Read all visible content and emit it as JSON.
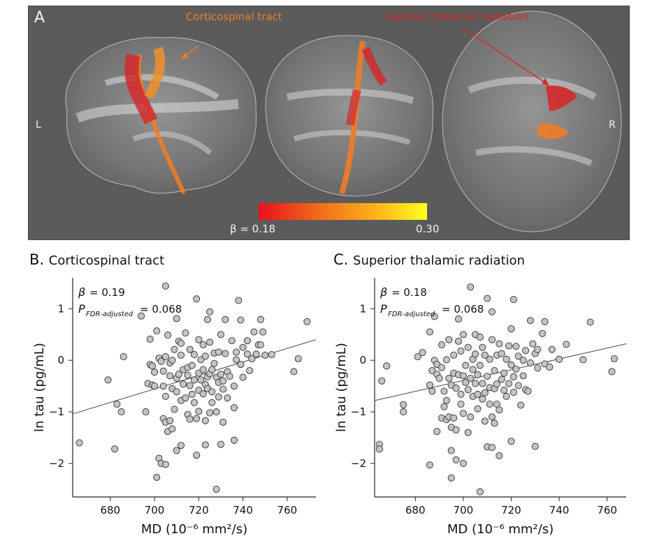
{
  "panel_a": {
    "letter": "A",
    "left_label": "L",
    "right_label": "R",
    "tract1": "Corticospinal tract",
    "tract2": "Superior thalamic radiation",
    "colorbar": {
      "min_label": "β = 0.18",
      "max_label": "0.30",
      "colors": [
        "#e8101c",
        "#f26a1c",
        "#fbb318",
        "#ffff1e"
      ]
    },
    "colors": {
      "background": "#5b5b5b",
      "corticospinal": "#f07c28",
      "thalamic": "#d42a2a"
    }
  },
  "chart_data": [
    {
      "type": "scatter",
      "panel_letter": "B.",
      "title": "Corticospinal tract",
      "xlabel": "MD (10⁻⁶ mm²/s)",
      "ylabel": "ln tau (pg/mL)",
      "xlim": [
        663,
        773
      ],
      "ylim": [
        -2.65,
        1.6
      ],
      "xticks": [
        680,
        700,
        720,
        740,
        760
      ],
      "yticks": [
        1,
        0,
        -1,
        -2
      ],
      "stat_beta": "= 0.19",
      "stat_p": "= 0.068",
      "beta_symbol": "β",
      "p_symbol": "P",
      "p_subscript": "FDR-adjusted",
      "regression_line": {
        "x": [
          663,
          773
        ],
        "y": [
          -1.04,
          0.4
        ]
      },
      "points": [
        [
          666,
          -1.6
        ],
        [
          679,
          -0.38
        ],
        [
          682,
          -1.72
        ],
        [
          683,
          -0.85
        ],
        [
          685,
          -1.0
        ],
        [
          686,
          0.07
        ],
        [
          694,
          0.86
        ],
        [
          696,
          -1.0
        ],
        [
          697,
          -0.45
        ],
        [
          698,
          -0.08
        ],
        [
          698,
          0.41
        ],
        [
          699,
          -0.11
        ],
        [
          699,
          -0.48
        ],
        [
          700,
          -0.23
        ],
        [
          700,
          -0.5
        ],
        [
          701,
          0.57
        ],
        [
          701,
          -2.27
        ],
        [
          702,
          -1.9
        ],
        [
          702,
          0.04
        ],
        [
          703,
          -0.02
        ],
        [
          703,
          -2.0
        ],
        [
          704,
          -1.13
        ],
        [
          704,
          -0.21
        ],
        [
          704,
          -0.5
        ],
        [
          705,
          -0.7
        ],
        [
          705,
          -1.2
        ],
        [
          705,
          -2.02
        ],
        [
          705,
          1.44
        ],
        [
          705,
          0.07
        ],
        [
          706,
          -1.38
        ],
        [
          706,
          0.49
        ],
        [
          707,
          -0.3
        ],
        [
          707,
          -0.05
        ],
        [
          707,
          -1.17
        ],
        [
          708,
          -1.33
        ],
        [
          708,
          -0.55
        ],
        [
          708,
          0.0
        ],
        [
          709,
          -0.95
        ],
        [
          709,
          0.21
        ],
        [
          710,
          -1.75
        ],
        [
          710,
          -0.35
        ],
        [
          710,
          0.81
        ],
        [
          710,
          -0.61
        ],
        [
          711,
          -0.27
        ],
        [
          711,
          0.37
        ],
        [
          712,
          -1.65
        ],
        [
          712,
          -0.78
        ],
        [
          712,
          0.1
        ],
        [
          712,
          0.33
        ],
        [
          713,
          -0.18
        ],
        [
          713,
          -0.46
        ],
        [
          714,
          -0.73
        ],
        [
          714,
          0.53
        ],
        [
          715,
          -0.29
        ],
        [
          715,
          -1.05
        ],
        [
          715,
          -0.14
        ],
        [
          716,
          -1.14
        ],
        [
          716,
          0.21
        ],
        [
          716,
          -0.49
        ],
        [
          717,
          -0.1
        ],
        [
          717,
          -0.66
        ],
        [
          718,
          -0.38
        ],
        [
          718,
          -0.82
        ],
        [
          718,
          0.11
        ],
        [
          719,
          -1.84
        ],
        [
          719,
          1.19
        ],
        [
          719,
          -1.13
        ],
        [
          720,
          -0.25
        ],
        [
          720,
          -0.58
        ],
        [
          720,
          0.4
        ],
        [
          720,
          -0.99
        ],
        [
          721,
          -0.38
        ],
        [
          721,
          0.01
        ],
        [
          722,
          -0.65
        ],
        [
          722,
          0.3
        ],
        [
          722,
          -0.18
        ],
        [
          723,
          -1.64
        ],
        [
          723,
          -1.17
        ],
        [
          723,
          -0.47
        ],
        [
          723,
          0.08
        ],
        [
          724,
          0.79
        ],
        [
          724,
          -0.32
        ],
        [
          724,
          -0.55
        ],
        [
          725,
          -0.26
        ],
        [
          725,
          0.94
        ],
        [
          725,
          -1.02
        ],
        [
          725,
          0.35
        ],
        [
          726,
          -0.18
        ],
        [
          726,
          -0.61
        ],
        [
          726,
          -0.82
        ],
        [
          727,
          -0.06
        ],
        [
          727,
          0.14
        ],
        [
          728,
          -1.0
        ],
        [
          728,
          -0.33
        ],
        [
          728,
          -2.5
        ],
        [
          729,
          -0.43
        ],
        [
          729,
          0.16
        ],
        [
          729,
          -0.71
        ],
        [
          730,
          -0.27
        ],
        [
          730,
          -1.63
        ],
        [
          730,
          0.5
        ],
        [
          731,
          -0.4
        ],
        [
          731,
          -0.56
        ],
        [
          731,
          -1.2
        ],
        [
          732,
          0.13
        ],
        [
          732,
          0.79
        ],
        [
          733,
          -0.22
        ],
        [
          733,
          -0.73
        ],
        [
          734,
          -0.31
        ],
        [
          735,
          0.38
        ],
        [
          736,
          -0.5
        ],
        [
          736,
          -0.92
        ],
        [
          736,
          -1.55
        ],
        [
          737,
          0.01
        ],
        [
          737,
          0.16
        ],
        [
          738,
          1.16
        ],
        [
          739,
          -0.08
        ],
        [
          739,
          0.78
        ],
        [
          740,
          0.25
        ],
        [
          740,
          -0.33
        ],
        [
          742,
          0.12
        ],
        [
          742,
          0.38
        ],
        [
          743,
          -0.2
        ],
        [
          744,
          0.03
        ],
        [
          745,
          0.55
        ],
        [
          746,
          0.12
        ],
        [
          747,
          0.3
        ],
        [
          748,
          0.79
        ],
        [
          748,
          0.3
        ],
        [
          749,
          0.55
        ],
        [
          750,
          0.1
        ],
        [
          753,
          0.11
        ],
        [
          763,
          -0.22
        ],
        [
          765,
          0.03
        ],
        [
          769,
          0.75
        ]
      ]
    },
    {
      "type": "scatter",
      "panel_letter": "C.",
      "title": "Superior thalamic radiation",
      "xlabel": "MD (10⁻⁶ mm²/s)",
      "ylabel": "ln tau (pg/mL)",
      "xlim": [
        663,
        768
      ],
      "ylim": [
        -2.65,
        1.6
      ],
      "xticks": [
        680,
        700,
        720,
        740,
        760
      ],
      "yticks": [
        1,
        0,
        -1,
        -2
      ],
      "stat_beta": "= 0.18",
      "stat_p": "= 0.068",
      "beta_symbol": "β",
      "p_symbol": "P",
      "p_subscript": "FDR-adjusted",
      "regression_line": {
        "x": [
          663,
          768
        ],
        "y": [
          -0.78,
          0.32
        ]
      },
      "points": [
        [
          665,
          -1.63
        ],
        [
          665,
          -1.72
        ],
        [
          666,
          -0.4
        ],
        [
          668,
          -0.11
        ],
        [
          675,
          -0.86
        ],
        [
          675,
          -1.0
        ],
        [
          681,
          0.07
        ],
        [
          683,
          0.15
        ],
        [
          686,
          -2.03
        ],
        [
          686,
          -0.48
        ],
        [
          686,
          0.55
        ],
        [
          687,
          -0.2
        ],
        [
          687,
          -0.6
        ],
        [
          688,
          0.0
        ],
        [
          688,
          0.85
        ],
        [
          689,
          -1.38
        ],
        [
          689,
          -0.27
        ],
        [
          689,
          -0.08
        ],
        [
          690,
          -0.35
        ],
        [
          691,
          0.3
        ],
        [
          691,
          -1.12
        ],
        [
          691,
          -0.14
        ],
        [
          692,
          -0.6
        ],
        [
          692,
          -0.9
        ],
        [
          693,
          -1.15
        ],
        [
          693,
          -0.78
        ],
        [
          693,
          0.01
        ],
        [
          694,
          -1.1
        ],
        [
          694,
          -0.35
        ],
        [
          694,
          0.4
        ],
        [
          695,
          -2.28
        ],
        [
          695,
          -1.75
        ],
        [
          695,
          -0.48
        ],
        [
          695,
          -1.3
        ],
        [
          696,
          -1.12
        ],
        [
          696,
          0.1
        ],
        [
          696,
          -0.25
        ],
        [
          697,
          -1.93
        ],
        [
          697,
          -0.54
        ],
        [
          697,
          -1.35
        ],
        [
          698,
          0.37
        ],
        [
          698,
          0.8
        ],
        [
          698,
          -0.28
        ],
        [
          699,
          -0.66
        ],
        [
          699,
          -0.85
        ],
        [
          699,
          0.18
        ],
        [
          700,
          -0.3
        ],
        [
          700,
          -1.03
        ],
        [
          700,
          -2.0
        ],
        [
          700,
          0.5
        ],
        [
          701,
          -0.1
        ],
        [
          701,
          -0.43
        ],
        [
          702,
          -1.4
        ],
        [
          702,
          0.25
        ],
        [
          702,
          -0.57
        ],
        [
          703,
          1.42
        ],
        [
          703,
          -0.35
        ],
        [
          703,
          -1.1
        ],
        [
          704,
          0.02
        ],
        [
          704,
          -0.7
        ],
        [
          704,
          -0.18
        ],
        [
          705,
          0.5
        ],
        [
          705,
          -0.45
        ],
        [
          705,
          0.12
        ],
        [
          706,
          -0.94
        ],
        [
          706,
          -0.66
        ],
        [
          706,
          -0.28
        ],
        [
          707,
          -2.55
        ],
        [
          707,
          0.45
        ],
        [
          707,
          -0.1
        ],
        [
          708,
          -0.75
        ],
        [
          708,
          -0.45
        ],
        [
          708,
          0.25
        ],
        [
          709,
          -1.18
        ],
        [
          709,
          0.1
        ],
        [
          709,
          -0.63
        ],
        [
          710,
          1.2
        ],
        [
          710,
          -0.31
        ],
        [
          710,
          -1.68
        ],
        [
          711,
          -0.53
        ],
        [
          711,
          -0.85
        ],
        [
          711,
          0.02
        ],
        [
          712,
          -1.1
        ],
        [
          712,
          0.94
        ],
        [
          712,
          -1.69
        ],
        [
          712,
          0.4
        ],
        [
          713,
          -0.2
        ],
        [
          713,
          -1.22
        ],
        [
          713,
          -0.55
        ],
        [
          714,
          -0.46
        ],
        [
          714,
          0.1
        ],
        [
          714,
          -0.85
        ],
        [
          715,
          0.32
        ],
        [
          715,
          -0.96
        ],
        [
          715,
          -1.85
        ],
        [
          716,
          -0.37
        ],
        [
          716,
          0.13
        ],
        [
          717,
          -0.58
        ],
        [
          717,
          -0.25
        ],
        [
          718,
          0.02
        ],
        [
          718,
          -0.7
        ],
        [
          719,
          0.28
        ],
        [
          719,
          -0.45
        ],
        [
          720,
          0.61
        ],
        [
          720,
          -0.09
        ],
        [
          720,
          -1.57
        ],
        [
          721,
          1.18
        ],
        [
          721,
          -0.32
        ],
        [
          721,
          -0.62
        ],
        [
          722,
          0.27
        ],
        [
          722,
          -0.17
        ],
        [
          723,
          -0.49
        ],
        [
          723,
          0.08
        ],
        [
          724,
          -0.87
        ],
        [
          725,
          -0.3
        ],
        [
          725,
          0.0
        ],
        [
          726,
          -0.57
        ],
        [
          726,
          0.19
        ],
        [
          727,
          -0.6
        ],
        [
          728,
          0.77
        ],
        [
          728,
          -0.05
        ],
        [
          729,
          0.32
        ],
        [
          730,
          -1.67
        ],
        [
          730,
          0.13
        ],
        [
          731,
          -0.15
        ],
        [
          731,
          0.21
        ],
        [
          733,
          0.52
        ],
        [
          734,
          0.75
        ],
        [
          734,
          -0.07
        ],
        [
          736,
          -0.13
        ],
        [
          737,
          0.21
        ],
        [
          740,
          0.02
        ],
        [
          743,
          0.31
        ],
        [
          750,
          0.01
        ],
        [
          753,
          0.74
        ],
        [
          762,
          -0.22
        ],
        [
          763,
          0.03
        ]
      ]
    }
  ]
}
